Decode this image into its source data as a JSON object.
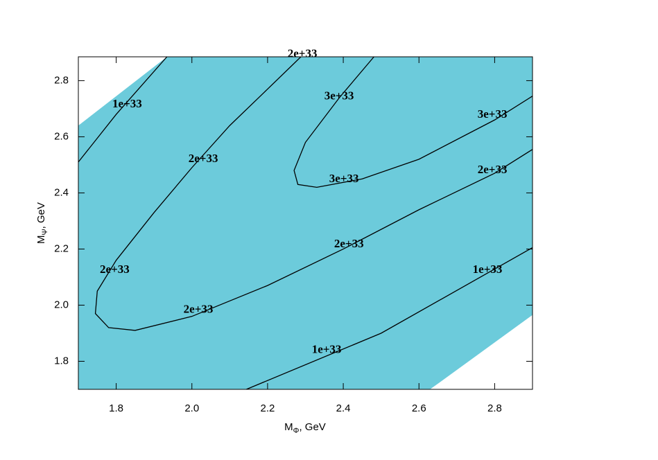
{
  "chart_data": {
    "type": "contour",
    "xlabel": {
      "main": "M",
      "sub": "Φ",
      "rest": ", GeV"
    },
    "ylabel": {
      "main": "M",
      "sub": "Ψ",
      "rest": ", GeV"
    },
    "xlim": [
      1.7,
      2.9
    ],
    "ylim": [
      1.7,
      2.885
    ],
    "xticks": [
      1.8,
      {
        "value": 2,
        "label": "2.0"
      },
      2.2,
      2.4,
      2.6,
      2.8
    ],
    "yticks": [
      1.8,
      {
        "value": 2,
        "label": "2.0"
      },
      2.2,
      2.4,
      2.6,
      2.8
    ],
    "region": {
      "color": "#6ccbdb",
      "x": [
        1.7,
        1.934,
        2.9,
        2.9,
        2.656,
        2.629,
        1.7
      ],
      "y": [
        2.64,
        2.885,
        2.885,
        1.965,
        1.726,
        1.7,
        1.7
      ]
    },
    "line_color": "#000000",
    "contours": [
      {
        "name": "1e+33",
        "x": [
          1.7,
          1.8,
          1.934
        ],
        "y": [
          2.51,
          2.68,
          2.885
        ]
      },
      {
        "name": "1e+33",
        "x": [
          2.144,
          2.5,
          2.9
        ],
        "y": [
          1.7,
          1.9,
          2.205
        ]
      },
      {
        "name": "2e+33",
        "x": [
          2.288,
          2.2,
          2.1,
          2.0,
          1.9,
          1.8,
          1.75,
          1.745,
          1.78,
          1.85,
          2.0,
          2.2,
          2.4,
          2.6,
          2.8,
          2.9
        ],
        "y": [
          2.885,
          2.77,
          2.64,
          2.49,
          2.33,
          2.16,
          2.05,
          1.97,
          1.92,
          1.91,
          1.96,
          2.07,
          2.2,
          2.34,
          2.47,
          2.555
        ]
      },
      {
        "name": "3e+33",
        "x": [
          2.481,
          2.39,
          2.3,
          2.27,
          2.28,
          2.33,
          2.45,
          2.6,
          2.8,
          2.9
        ],
        "y": [
          2.885,
          2.74,
          2.58,
          2.48,
          2.43,
          2.42,
          2.45,
          2.52,
          2.66,
          2.745
        ]
      }
    ],
    "contour_labels": [
      {
        "text": "2e+33",
        "x": 2.292,
        "y": 2.894
      },
      {
        "text": "1e+33",
        "x": 1.829,
        "y": 2.714
      },
      {
        "text": "3e+33",
        "x": 2.389,
        "y": 2.743
      },
      {
        "text": "3e+33",
        "x": 2.794,
        "y": 2.677
      },
      {
        "text": "2e+33",
        "x": 2.03,
        "y": 2.519
      },
      {
        "text": "3e+33",
        "x": 2.402,
        "y": 2.448
      },
      {
        "text": "2e+33",
        "x": 2.794,
        "y": 2.48
      },
      {
        "text": "2e+33",
        "x": 2.415,
        "y": 2.216
      },
      {
        "text": "2e+33",
        "x": 1.796,
        "y": 2.125
      },
      {
        "text": "1e+33",
        "x": 2.781,
        "y": 2.125
      },
      {
        "text": "2e+33",
        "x": 2.017,
        "y": 1.982
      },
      {
        "text": "1e+33",
        "x": 2.356,
        "y": 1.839
      }
    ]
  }
}
